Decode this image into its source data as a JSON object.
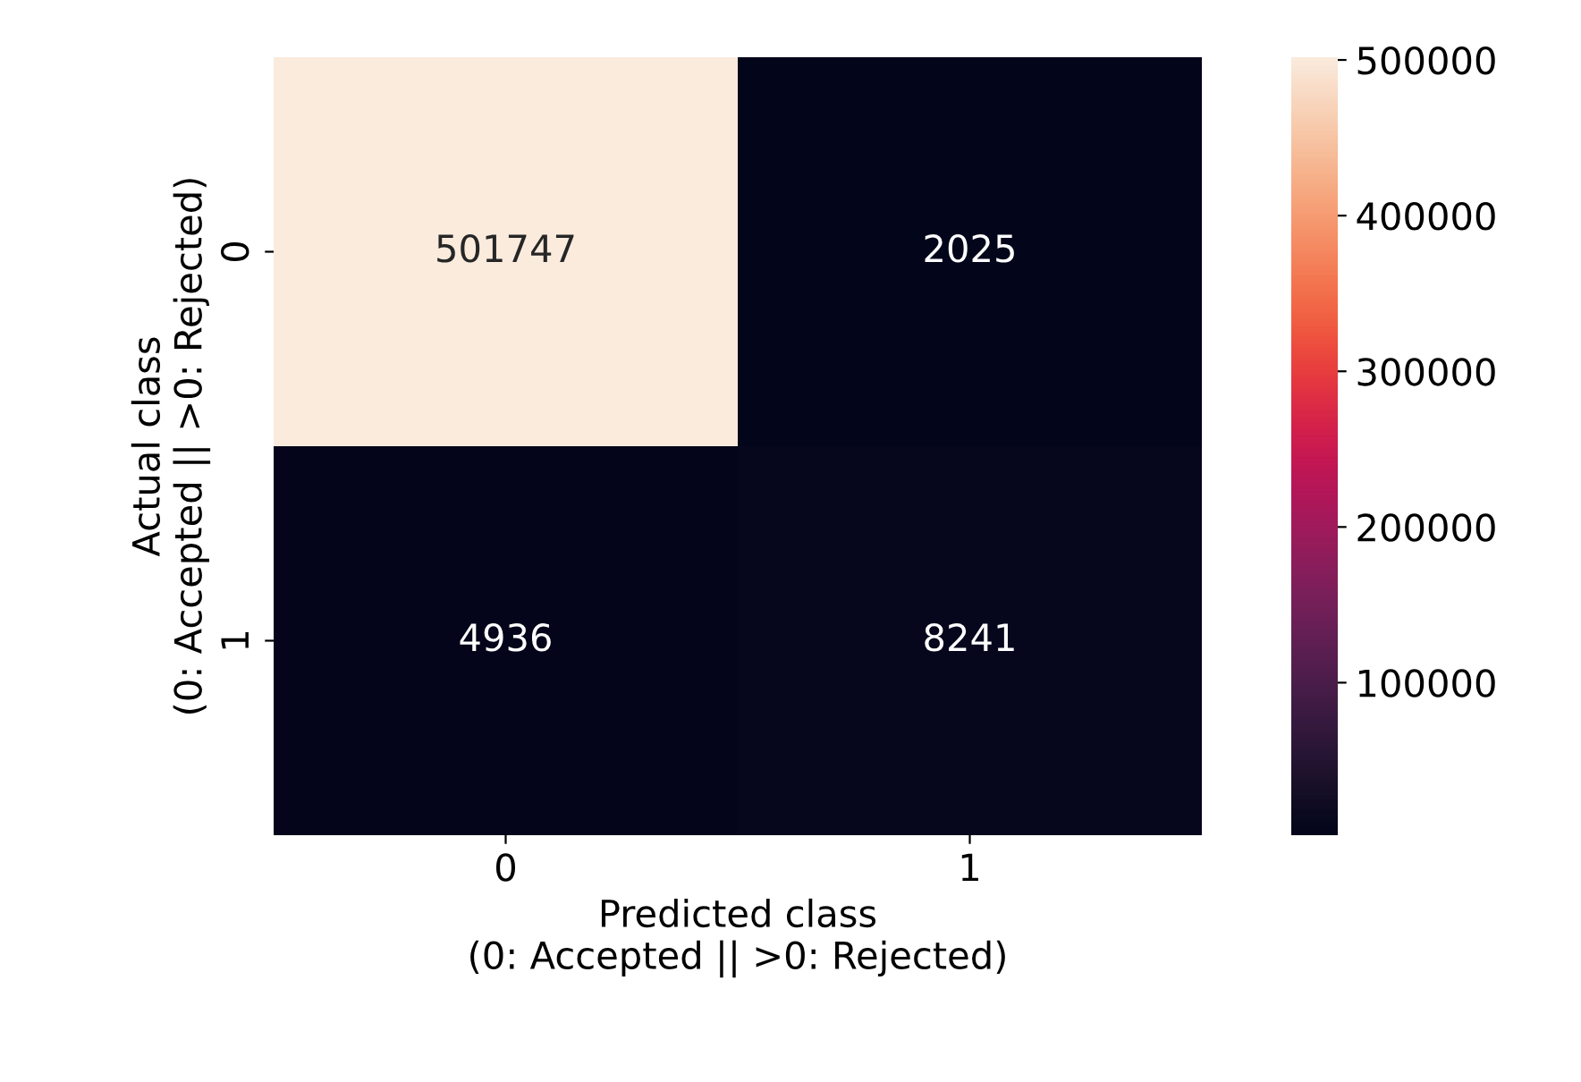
{
  "chart_data": {
    "type": "heatmap",
    "xlabel": "Predicted class\n(0: Accepted || >0: Rejected)",
    "ylabel": "Actual class\n(0: Accepted || >0: Rejected)",
    "categories": [
      "0",
      "1"
    ],
    "y_categories": [
      "0",
      "1"
    ],
    "cells": [
      [
        501747,
        2025
      ],
      [
        4936,
        8241
      ]
    ],
    "clim": [
      2025,
      501747
    ],
    "cticks": [
      100000,
      200000,
      300000,
      400000,
      500000
    ],
    "data_labels": true
  }
}
